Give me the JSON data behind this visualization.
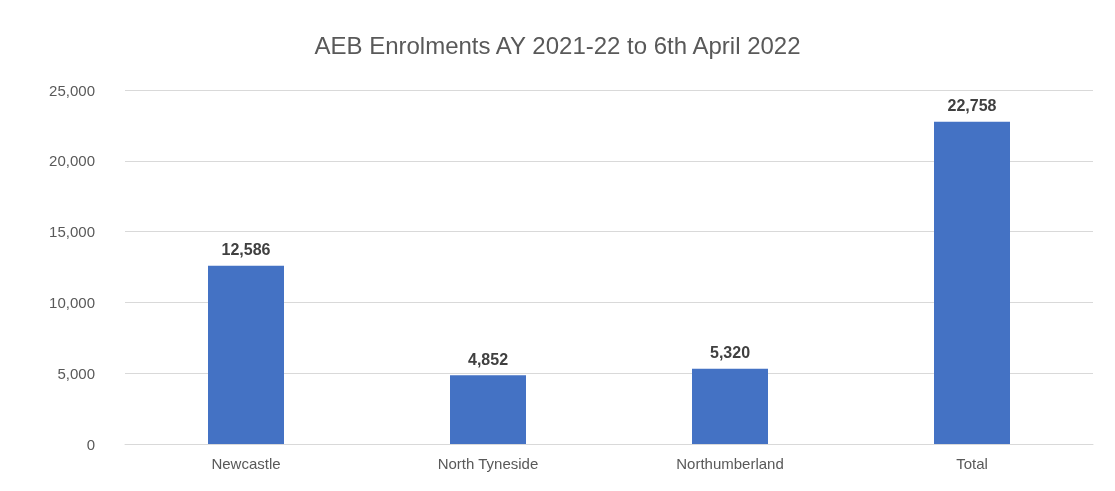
{
  "chart_data": {
    "type": "bar",
    "title": "AEB Enrolments AY 2021-22 to 6th April 2022",
    "categories": [
      "Newcastle",
      "North Tyneside",
      "Northumberland",
      "Total"
    ],
    "values": [
      12586,
      4852,
      5320,
      22758
    ],
    "value_labels": [
      "12,586",
      "4,852",
      "5,320",
      "22,758"
    ],
    "color": "#4472c4",
    "ylim": [
      0,
      25000
    ],
    "yticks": [
      {
        "value": 0,
        "label": "0"
      },
      {
        "value": 5000,
        "label": "5,000"
      },
      {
        "value": 10000,
        "label": "10,000"
      },
      {
        "value": 15000,
        "label": "15,000"
      },
      {
        "value": 20000,
        "label": "20,000"
      },
      {
        "value": 25000,
        "label": "25,000"
      }
    ],
    "grid": true
  }
}
